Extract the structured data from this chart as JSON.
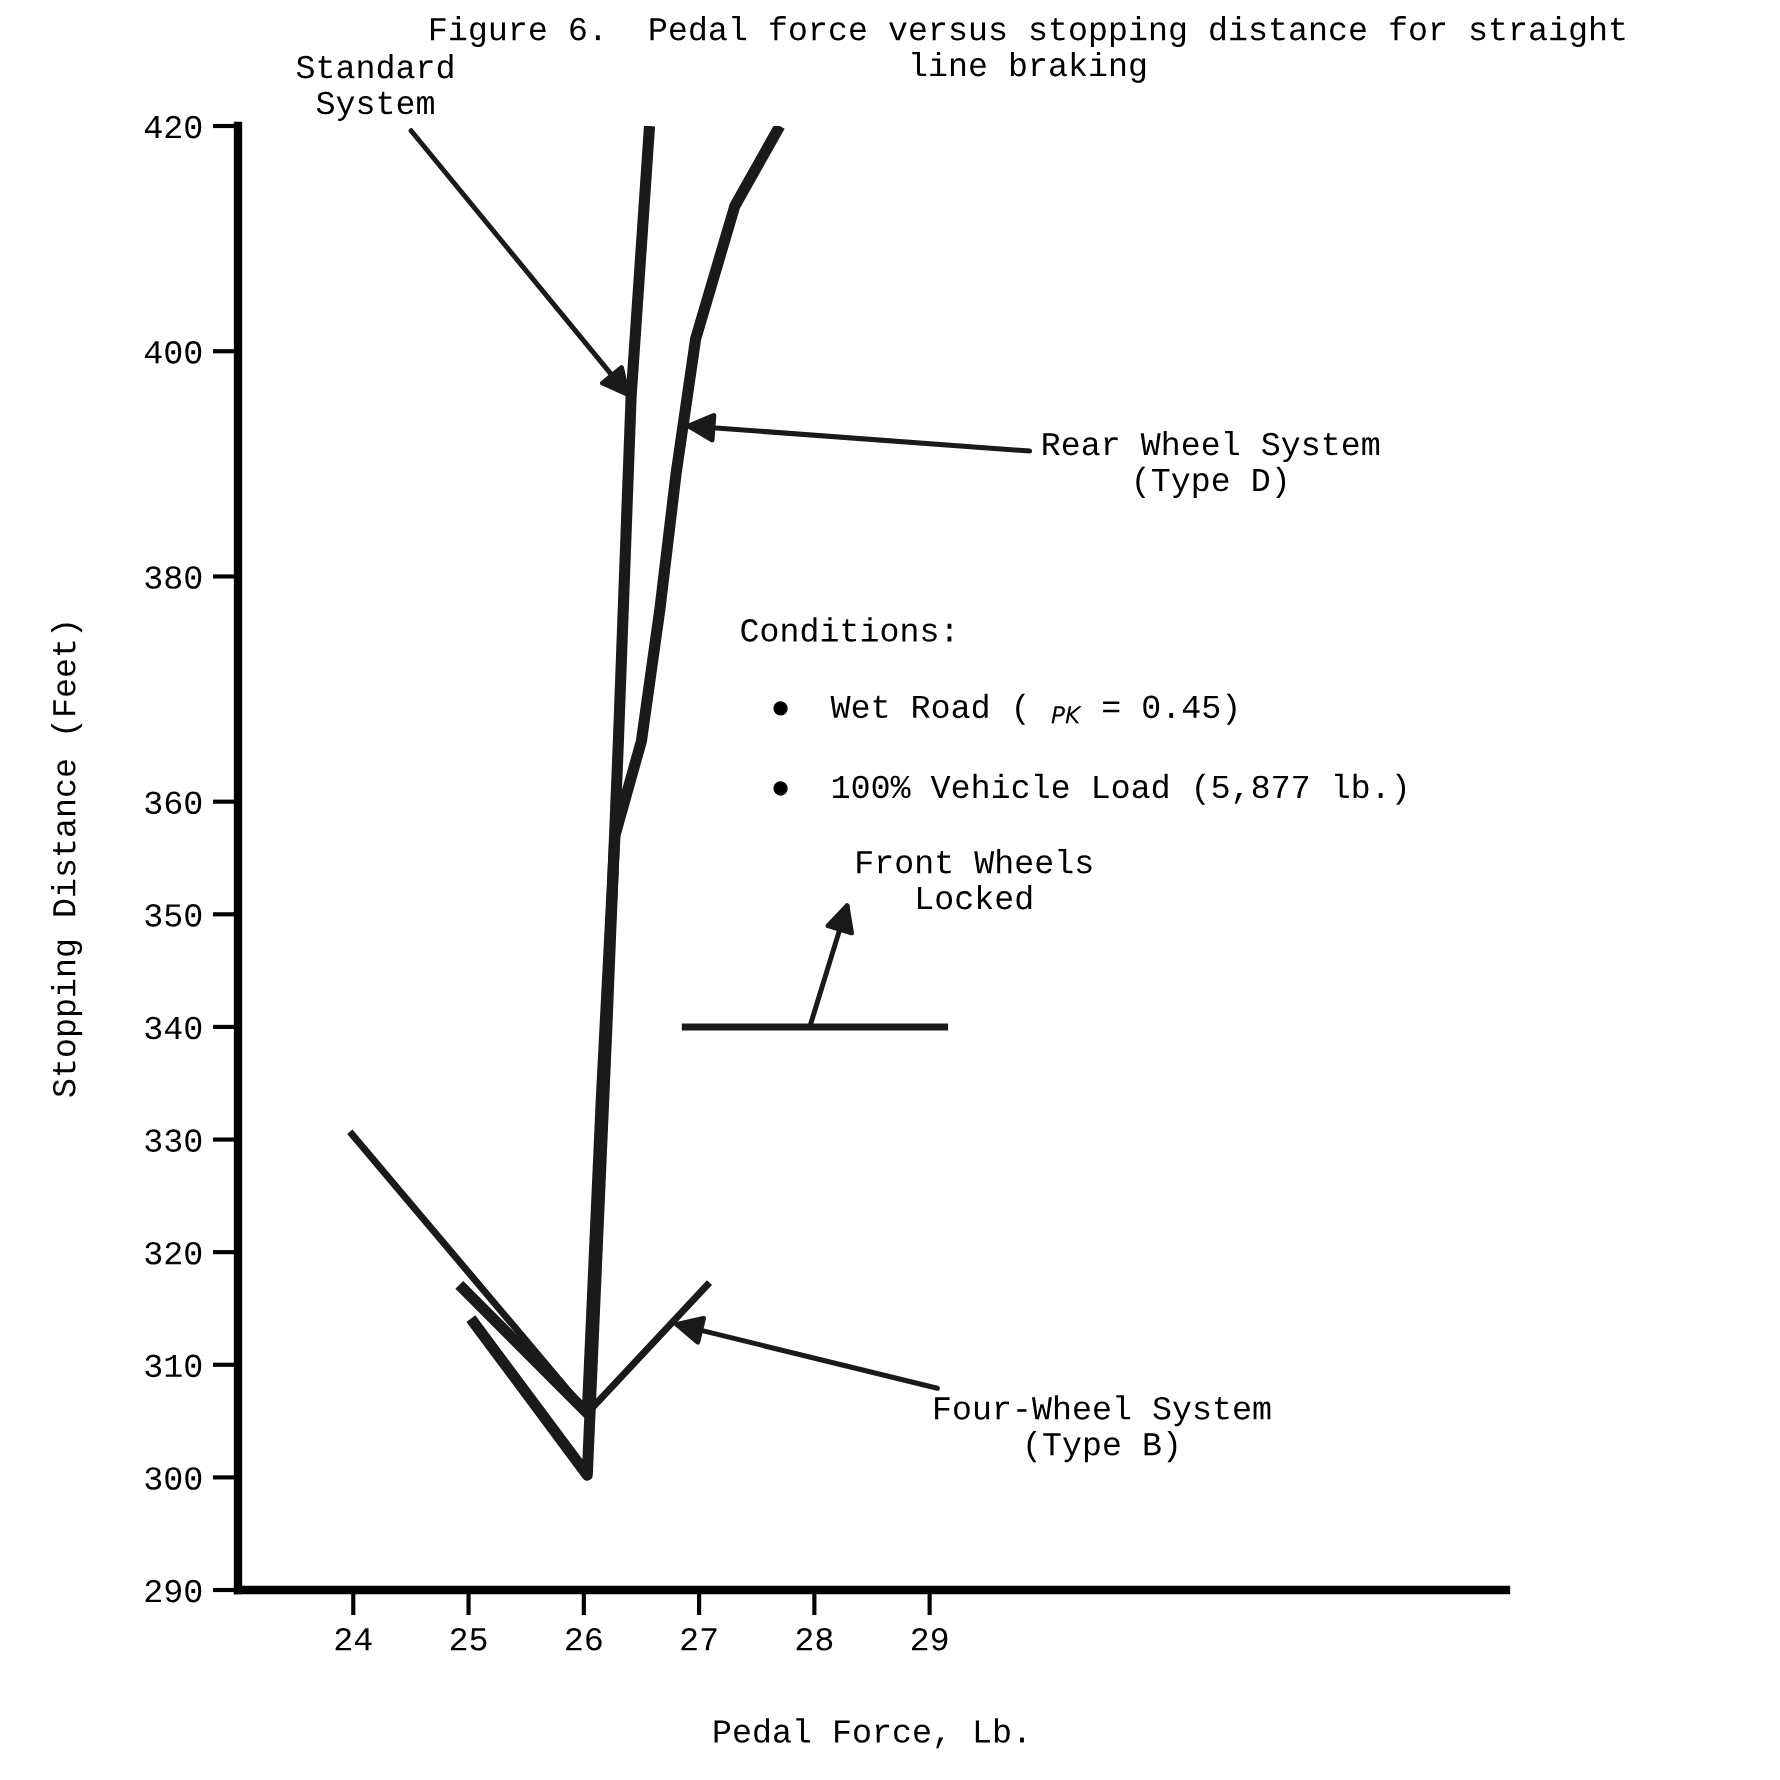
{
  "chart_data": {
    "type": "line",
    "title": "Figure 6.  Pedal force versus stopping distance for straight\nline braking",
    "xlabel": "Pedal Force, Lb.",
    "ylabel": "Stopping Distance (Feet)",
    "xlim": [
      23,
      34
    ],
    "ylim": [
      290,
      420
    ],
    "xticks": [
      24,
      25,
      26,
      27,
      28,
      29
    ],
    "yticks": [
      290,
      300,
      310,
      320,
      330,
      340,
      350,
      360,
      380,
      400,
      420
    ],
    "grid": false,
    "legend": false,
    "marker": "none",
    "line_style": "solid",
    "series": [
      {
        "color": "#1a1a1a",
        "x": [
          25.02,
          26.03,
          26.2,
          26.3,
          26.41,
          26.57
        ],
        "values": [
          314.1,
          300.2,
          340,
          365.4,
          395.9,
          420
        ]
      },
      {
        "color": "#1a1a1a",
        "x": [
          24.92,
          26.03,
          26.15,
          26.27,
          26.5,
          26.66,
          26.8,
          26.97,
          27.31,
          27.7
        ],
        "values": [
          317.1,
          305.7,
          333.2,
          357,
          365.4,
          377.1,
          389.1,
          401.1,
          412.9,
          420
        ]
      },
      {
        "color": "#1a1a1a",
        "x": [
          23.97,
          26.03,
          27.09
        ],
        "values": [
          330.7,
          305.7,
          317.3
        ]
      },
      {
        "color": "#1a1a1a",
        "x": [
          26.85,
          29.16
        ],
        "values": [
          340,
          340
        ]
      }
    ],
    "annotations": [
      {
        "text": "Standard\nSystem",
        "x": 26.41,
        "y": 395.8
      },
      {
        "text": "Rear Wheel System\n(Type D)",
        "x": 26.86,
        "y": 393.4
      },
      {
        "text": "Four-Wheel System\n(Type B)",
        "x": 26.76,
        "y": 313.7
      },
      {
        "text": "Front Wheels\nLocked",
        "x": 27.96,
        "y": 340
      },
      "Conditions:",
      "●  Wet Road ( $_{PK}$ = 0.45)",
      "●  100% Vehicle Load (5,877 lb.)"
    ]
  }
}
